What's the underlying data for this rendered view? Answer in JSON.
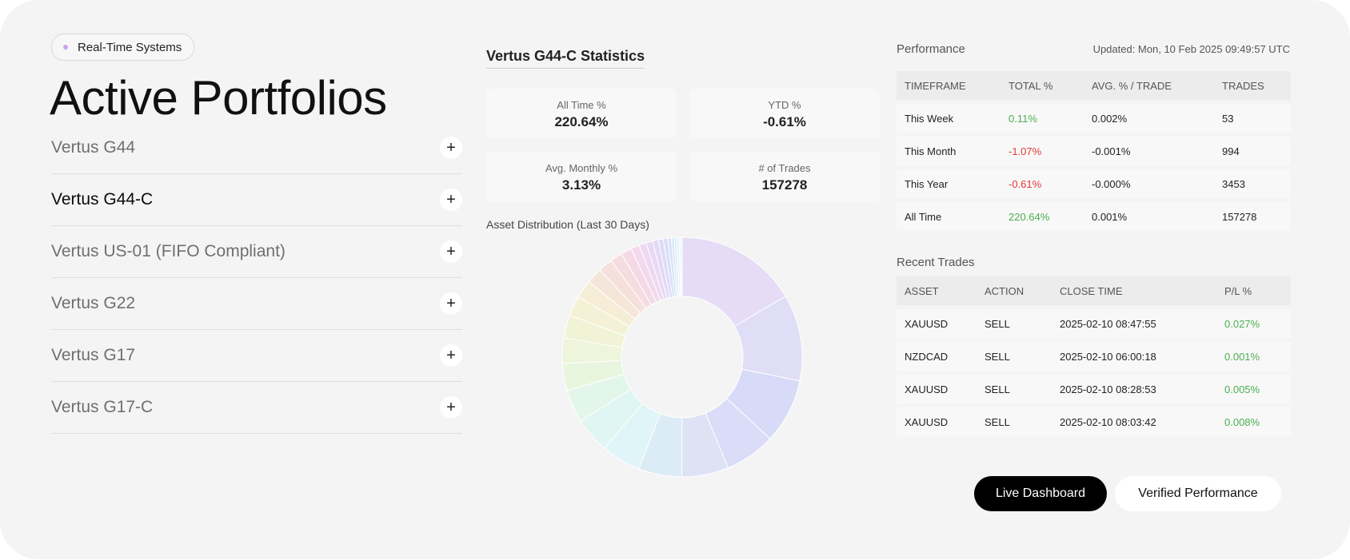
{
  "badge": {
    "label": "Real-Time Systems"
  },
  "page_title": "Active Portfolios",
  "portfolios": [
    {
      "name": "Vertus G44",
      "active": false
    },
    {
      "name": "Vertus G44-C",
      "active": true
    },
    {
      "name": "Vertus US-01 (FIFO Compliant)",
      "active": false
    },
    {
      "name": "Vertus G22",
      "active": false
    },
    {
      "name": "Vertus G17",
      "active": false
    },
    {
      "name": "Vertus G17-C",
      "active": false
    }
  ],
  "plus_symbol": "+",
  "stats": {
    "title": "Vertus G44-C Statistics",
    "all_time": {
      "label": "All Time %",
      "value": "220.64%"
    },
    "ytd": {
      "label": "YTD %",
      "value": "-0.61%"
    },
    "avg_monthly": {
      "label": "Avg. Monthly %",
      "value": "3.13%"
    },
    "trades": {
      "label": "# of Trades",
      "value": "157278"
    }
  },
  "distribution": {
    "title": "Asset Distribution (Last 30 Days)"
  },
  "chart_data": {
    "type": "pie",
    "title": "Asset Distribution (Last 30 Days)",
    "donut": true,
    "values": [
      17,
      12,
      9,
      7,
      6.5,
      6,
      5.5,
      5,
      4.5,
      3.8,
      3.5,
      3.2,
      2.8,
      2.5,
      2.2,
      2,
      1.7,
      1.5,
      1.2,
      1,
      0.9,
      0.8,
      0.7,
      0.6,
      0.5,
      0.4,
      0.35,
      0.3,
      0.25,
      0.2
    ],
    "colors": [
      "#e7dcf6",
      "#e0ddf7",
      "#d8dbf7",
      "#dbdcf7",
      "#dde3f5",
      "#dcecf6",
      "#dff5f7",
      "#e0f6f2",
      "#e3f6ea",
      "#e9f6df",
      "#eef5da",
      "#f1f3d6",
      "#f4f1d6",
      "#f6edd6",
      "#f6e6d9",
      "#f6e0dc",
      "#f6dce0",
      "#f5dae6",
      "#f2d9ec",
      "#eed9f2",
      "#e8d9f4",
      "#e2d9f6",
      "#dddbf7",
      "#d9ddf7",
      "#d8e2f6",
      "#d9e8f6",
      "#dbeef6",
      "#ddf2f6",
      "#e0f4f5",
      "#e3f5f3"
    ]
  },
  "performance": {
    "label": "Performance",
    "updated": "Updated: Mon, 10 Feb 2025 09:49:57 UTC",
    "headers": [
      "TIMEFRAME",
      "TOTAL %",
      "AVG. % / TRADE",
      "TRADES"
    ],
    "rows": [
      {
        "timeframe": "This Week",
        "total": "0.11%",
        "sign": "pos",
        "avg": "0.002%",
        "trades": "53"
      },
      {
        "timeframe": "This Month",
        "total": "-1.07%",
        "sign": "neg",
        "avg": "-0.001%",
        "trades": "994"
      },
      {
        "timeframe": "This Year",
        "total": "-0.61%",
        "sign": "neg",
        "avg": "-0.000%",
        "trades": "3453"
      },
      {
        "timeframe": "All Time",
        "total": "220.64%",
        "sign": "pos",
        "avg": "0.001%",
        "trades": "157278"
      }
    ]
  },
  "recent_trades": {
    "label": "Recent Trades",
    "headers": [
      "ASSET",
      "ACTION",
      "CLOSE TIME",
      "P/L %"
    ],
    "rows": [
      {
        "asset": "XAUUSD",
        "action": "SELL",
        "close_time": "2025-02-10 08:47:55",
        "pl": "0.027%"
      },
      {
        "asset": "NZDCAD",
        "action": "SELL",
        "close_time": "2025-02-10 06:00:18",
        "pl": "0.001%"
      },
      {
        "asset": "XAUUSD",
        "action": "SELL",
        "close_time": "2025-02-10 08:28:53",
        "pl": "0.005%"
      },
      {
        "asset": "XAUUSD",
        "action": "SELL",
        "close_time": "2025-02-10 08:03:42",
        "pl": "0.008%"
      }
    ]
  },
  "buttons": {
    "live": "Live Dashboard",
    "verified": "Verified Performance"
  }
}
